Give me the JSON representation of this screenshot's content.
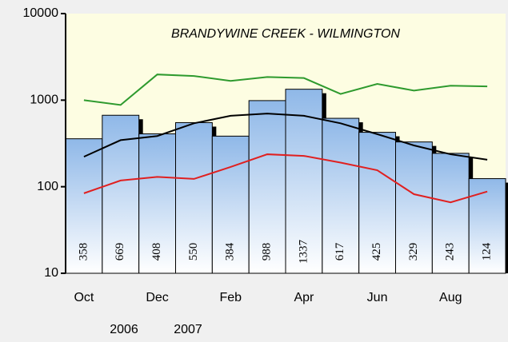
{
  "chart_data": {
    "type": "bar",
    "title": "BRANDYWINE CREEK - WILMINGTON",
    "categories": [
      "Oct",
      null,
      "Dec",
      null,
      "Feb",
      null,
      "Apr",
      null,
      "Jun",
      null,
      "Aug",
      null
    ],
    "values": [
      358,
      669,
      408,
      550,
      384,
      988,
      1337,
      617,
      425,
      329,
      243,
      124
    ],
    "color": "#8fb8e8",
    "series": [
      {
        "color": "#2e9a2e",
        "values": [
          1000,
          880,
          1980,
          1900,
          1670,
          1850,
          1800,
          1180,
          1540,
          1290,
          1470,
          1440
        ]
      },
      {
        "color": "#000000",
        "values": [
          222,
          345,
          385,
          540,
          660,
          700,
          660,
          540,
          405,
          300,
          237,
          205
        ]
      },
      {
        "color": "#e02020",
        "values": [
          84,
          118,
          130,
          123,
          169,
          237,
          227,
          190,
          155,
          82,
          66,
          88
        ]
      }
    ],
    "year_labels": [
      "2006",
      "2007"
    ],
    "ylim": [
      10,
      10000
    ],
    "yticks": [
      10,
      100,
      1000,
      10000
    ],
    "log_scale": true
  }
}
